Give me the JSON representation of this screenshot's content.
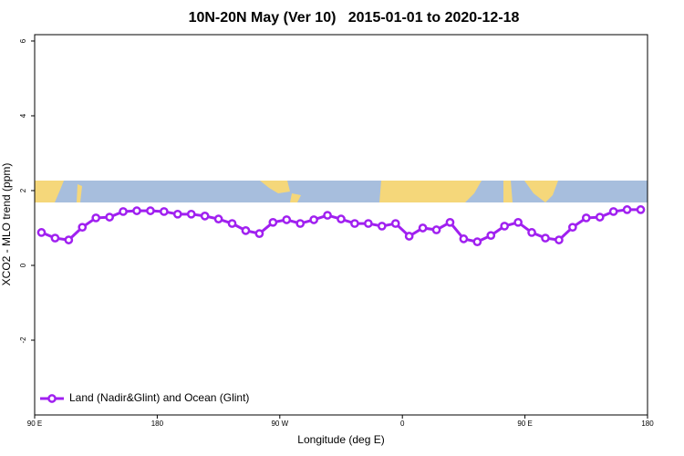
{
  "chart_data": {
    "type": "line",
    "title": "10N-20N May (Ver 10)   2015-01-01 to 2020-12-18",
    "x_label": "Longitude (deg E)",
    "y_label": "XCO2 - MLO trend (ppm)",
    "x": [
      95,
      105,
      115,
      125,
      135,
      145,
      155,
      165,
      175,
      185,
      195,
      205,
      215,
      225,
      235,
      245,
      255,
      265,
      275,
      285,
      295,
      305,
      315,
      325,
      335,
      345,
      355,
      365,
      375,
      385,
      395,
      405,
      415,
      425,
      435,
      445,
      455,
      465,
      475,
      485,
      495,
      505,
      515,
      525,
      535
    ],
    "series": [
      {
        "name": "Land (Nadir&Glint) and Ocean (Glint)",
        "color": "#a020f0",
        "values": [
          0.88,
          0.73,
          0.68,
          1.02,
          1.27,
          1.29,
          1.44,
          1.46,
          1.46,
          1.44,
          1.37,
          1.37,
          1.32,
          1.24,
          1.12,
          0.93,
          0.85,
          1.15,
          1.22,
          1.12,
          1.22,
          1.34,
          1.24,
          1.12,
          1.12,
          1.05,
          1.12,
          0.78,
          1.0,
          0.95,
          1.15,
          0.71,
          0.63,
          0.8,
          1.05,
          1.15,
          0.88,
          0.73,
          0.68,
          1.02,
          1.27,
          1.29,
          1.44,
          1.49,
          1.49
        ]
      }
    ],
    "xlim": [
      90,
      540
    ],
    "xticks": [
      {
        "value": 90,
        "label": "90 E"
      },
      {
        "value": 180,
        "label": "180"
      },
      {
        "value": 270,
        "label": "90 W"
      },
      {
        "value": 360,
        "label": "0"
      },
      {
        "value": 450,
        "label": "90 E"
      },
      {
        "value": 540,
        "label": "180"
      }
    ],
    "ylim": [
      -4,
      6.17
    ],
    "yticks": [
      -2,
      0,
      2,
      4,
      6
    ],
    "legend": "bottomleft"
  }
}
